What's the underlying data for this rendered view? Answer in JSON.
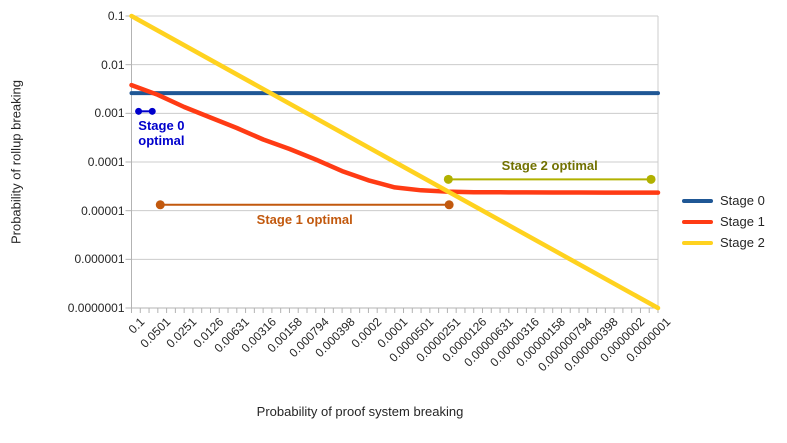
{
  "chart_data": {
    "type": "line",
    "title": "",
    "xlabel": "Probability of proof system breaking",
    "ylabel": "Probability of rollup breaking",
    "x_scale": "log",
    "y_scale": "log",
    "x_range": [
      0.1,
      1e-07
    ],
    "y_range": [
      1e-07,
      0.1
    ],
    "grid": "horizontal",
    "legend_position": "right",
    "x_ticks": [
      0.1,
      0.0501,
      0.0251,
      0.0126,
      0.00631,
      0.00316,
      0.00158,
      0.000794,
      0.000398,
      0.0002,
      0.0001,
      5.01e-05,
      2.51e-05,
      1.26e-05,
      6.31e-06,
      3.16e-06,
      1.58e-06,
      7.94e-07,
      3.98e-07,
      2e-07,
      1e-07
    ],
    "x_tick_labels": [
      "0.1",
      "0.0501",
      "0.0251",
      "0.0126",
      "0.00631",
      "0.00316",
      "0.00158",
      "0.000794",
      "0.000398",
      "0.0002",
      "0.0001",
      "0.0000501",
      "0.0000251",
      "0.0000126",
      "0.00000631",
      "0.00000316",
      "0.00000158",
      "0.000000794",
      "0.000000398",
      "0.0000002",
      "0.0000001"
    ],
    "y_ticks": [
      0.1,
      0.01,
      0.001,
      0.0001,
      1e-05,
      1e-06,
      1e-07
    ],
    "y_tick_labels": [
      "0.1",
      "0.01",
      "0.001",
      "0.0001",
      "0.00001",
      "0.000001",
      "0.0000001"
    ],
    "series": [
      {
        "name": "Stage 0",
        "color": "#1f5795",
        "width": 4,
        "x": [
          0.1,
          1e-07
        ],
        "y": [
          0.0026,
          0.0026
        ]
      },
      {
        "name": "Stage 1",
        "color": "#ff3b14",
        "width": 4.5,
        "x": [
          0.1,
          0.0501,
          0.0251,
          0.0126,
          0.00631,
          0.00316,
          0.00158,
          0.000794,
          0.000398,
          0.0002,
          0.0001,
          5.01e-05,
          2.51e-05,
          1.26e-05,
          6.31e-06,
          3.16e-06,
          1.58e-06,
          7.94e-07,
          3.98e-07,
          2e-07,
          1e-07
        ],
        "y": [
          0.0038,
          0.0024,
          0.00135,
          0.00082,
          0.0005,
          0.00029,
          0.000185,
          0.000112,
          6.5e-05,
          4.2e-05,
          3e-05,
          2.62e-05,
          2.47e-05,
          2.4e-05,
          2.38e-05,
          2.37e-05,
          2.36e-05,
          2.36e-05,
          2.35e-05,
          2.35e-05,
          2.35e-05
        ]
      },
      {
        "name": "Stage 2",
        "color": "#ffd21f",
        "width": 4.5,
        "x": [
          0.1,
          1e-07
        ],
        "y": [
          0.1,
          1e-07
        ]
      }
    ],
    "annotations": [
      {
        "id": "stage0-optimal",
        "label": "Stage 0\noptimal",
        "line_color": "#0000cc",
        "label_color": "#0000cc",
        "y": 0.0011,
        "x_start": 0.083,
        "x_end": 0.058,
        "dot_radius": 3.5,
        "label_side": "below"
      },
      {
        "id": "stage1-optimal",
        "label": "Stage 1 optimal",
        "line_color": "#c2590e",
        "label_color": "#c2590e",
        "y": 1.32e-05,
        "x_start": 0.047,
        "x_end": 2.4e-05,
        "dot_radius": 4.5,
        "label_side": "below"
      },
      {
        "id": "stage2-optimal",
        "label": "Stage 2 optimal",
        "line_color": "#b1b100",
        "label_color": "#717100",
        "y": 4.4e-05,
        "x_start": 2.45e-05,
        "x_end": 1.2e-07,
        "dot_radius": 4.5,
        "label_side": "above"
      }
    ]
  },
  "legend": {
    "items": [
      {
        "label": "Stage 0",
        "color": "#1f5795"
      },
      {
        "label": "Stage 1",
        "color": "#ff3b14"
      },
      {
        "label": "Stage 2",
        "color": "#ffd21f"
      }
    ]
  },
  "colors": {
    "gridline": "#cccccc",
    "axis": "#b3b3b3",
    "tick_text": "#262626"
  }
}
